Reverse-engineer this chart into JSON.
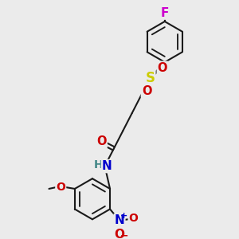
{
  "bg_color": "#ebebeb",
  "bond_color": "#1a1a1a",
  "bond_width": 1.5,
  "atom_colors": {
    "F": "#cc00cc",
    "S": "#cccc00",
    "O": "#cc0000",
    "N_amide": "#0000cc",
    "N_nitro": "#0000cc",
    "H": "#448888",
    "C": "#1a1a1a"
  },
  "font_size_atom": 10.5,
  "font_size_small": 9
}
